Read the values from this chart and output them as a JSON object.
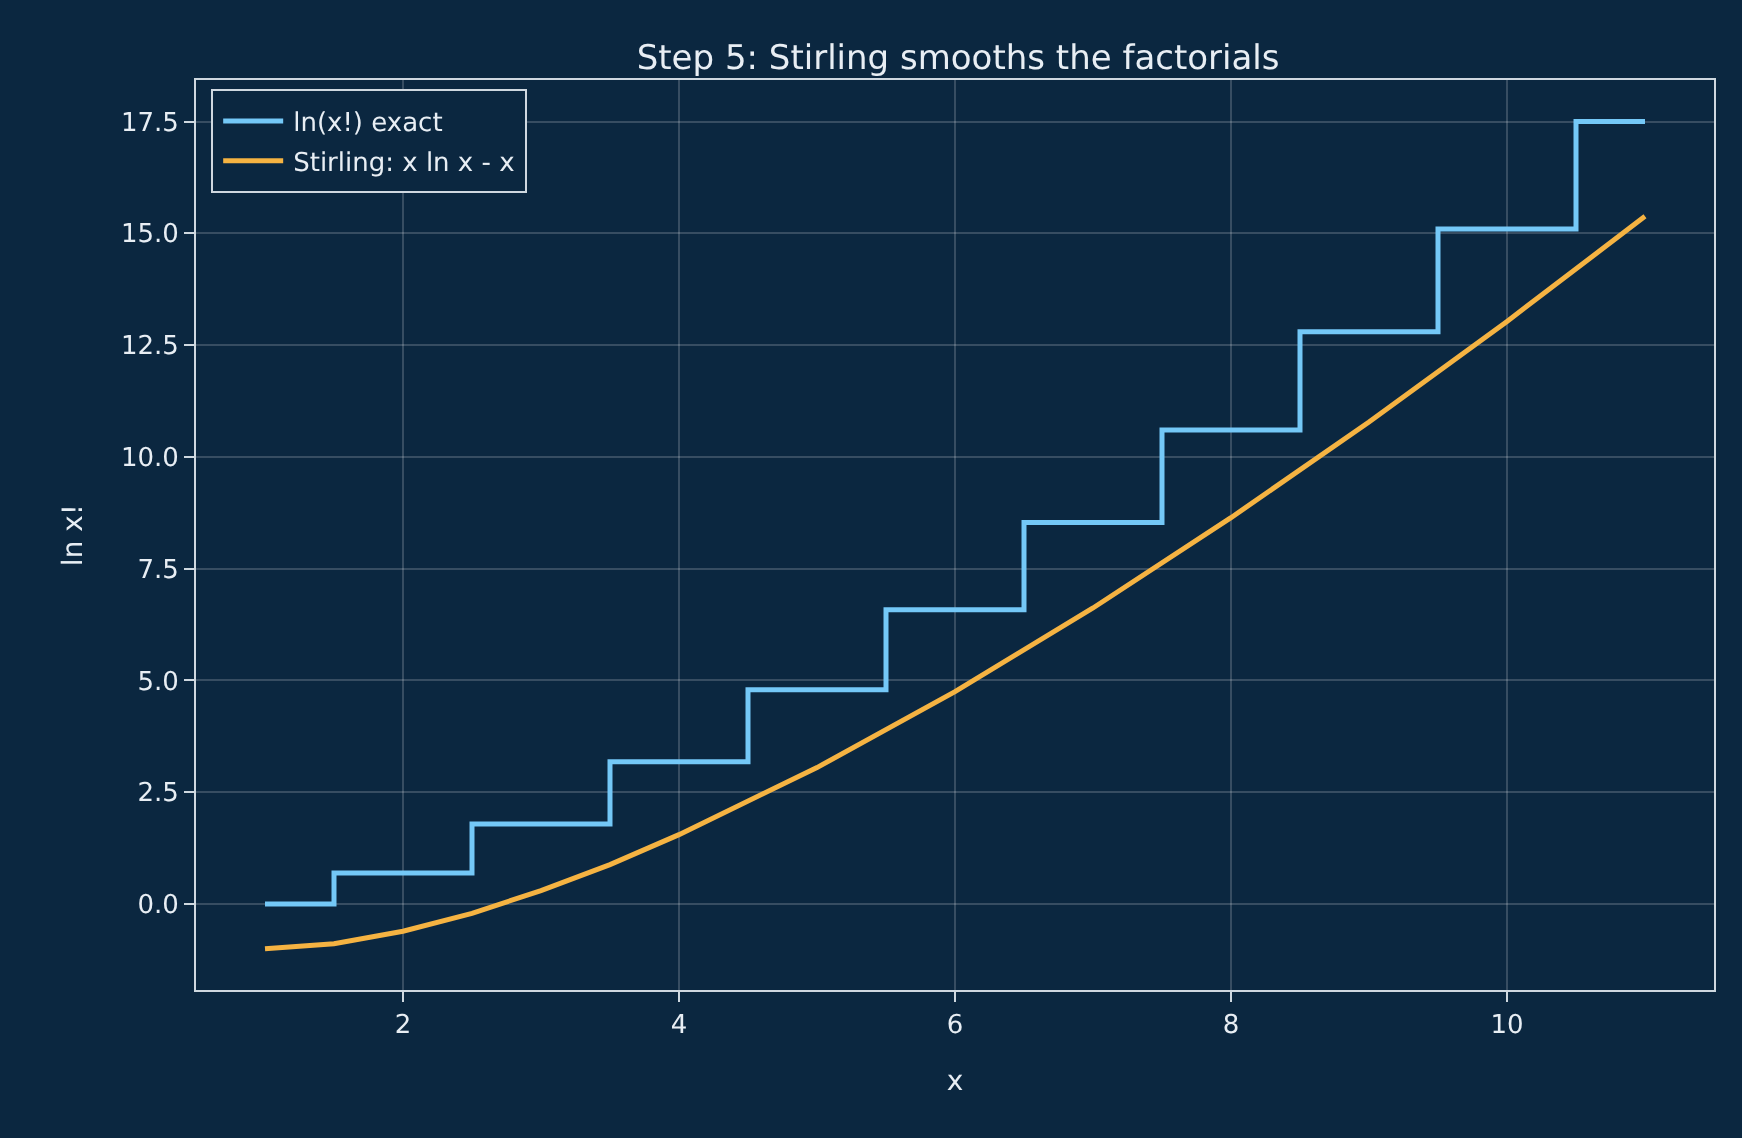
{
  "chart_data": {
    "type": "line",
    "title": "Step 5: Stirling smooths the factorials",
    "xlabel": "x",
    "ylabel": "ln x!",
    "series": [
      {
        "name": "ln(x!) exact",
        "type": "step",
        "color": "#74c8f7",
        "x": [
          1,
          2,
          3,
          4,
          5,
          6,
          7,
          8,
          9,
          10,
          11
        ],
        "values": [
          0,
          0.69,
          1.79,
          3.18,
          4.79,
          6.58,
          8.53,
          10.6,
          12.8,
          15.1,
          17.5
        ]
      },
      {
        "name": "Stirling: x ln x - x",
        "color": "#f5b342",
        "x": [
          1,
          1.5,
          2,
          2.5,
          3,
          3.5,
          4,
          5,
          6,
          7,
          8,
          9,
          10,
          11
        ],
        "values": [
          -1,
          -0.89,
          -0.61,
          -0.21,
          0.3,
          0.88,
          1.55,
          3.05,
          4.75,
          6.62,
          8.64,
          10.78,
          13.03,
          15.38
        ]
      }
    ],
    "xlim": [
      0.5,
      11.5
    ],
    "xticks": [
      2,
      4,
      6,
      8,
      10
    ],
    "ylim": [
      -1.925,
      18.43
    ],
    "yticks": [
      {
        "value": 0,
        "label": "0.0"
      },
      2.5,
      {
        "value": 5,
        "label": "5.0"
      },
      7.5,
      {
        "value": 10,
        "label": "10.0"
      },
      12.5,
      {
        "value": 15,
        "label": "15.0"
      },
      17.5
    ],
    "grid": true,
    "legend": "top left",
    "line_style": "solid",
    "marker": "none"
  }
}
